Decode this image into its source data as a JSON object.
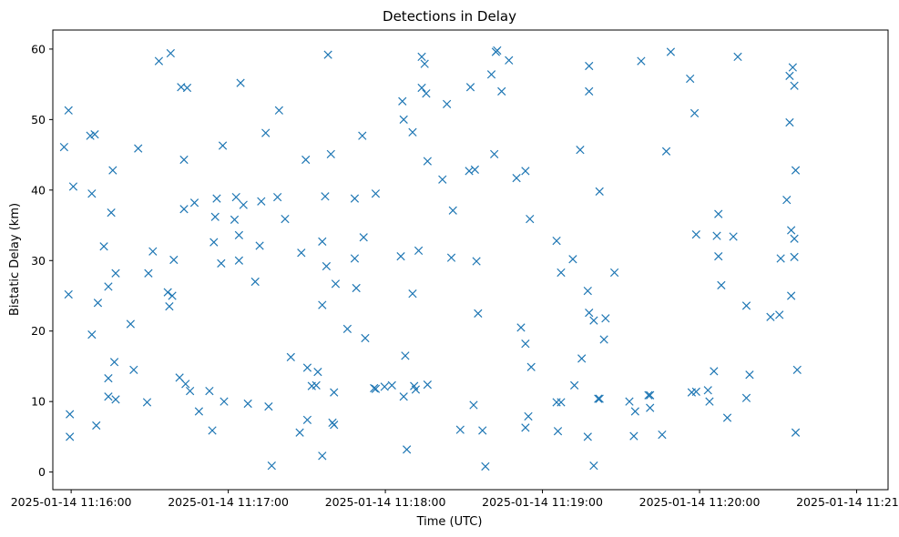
{
  "chart_data": {
    "type": "scatter",
    "title": "Detections in Delay",
    "xlabel": "Time (UTC)",
    "ylabel": "Bistatic Delay (km)",
    "x_axis_kind": "datetime",
    "xlim": [
      "2025-01-14 11:15:53",
      "2025-01-14 11:21:12"
    ],
    "ylim": [
      -2.5,
      62.7
    ],
    "x_ticks": [
      "2025-01-14 11:16:00",
      "2025-01-14 11:17:00",
      "2025-01-14 11:18:00",
      "2025-01-14 11:19:00",
      "2025-01-14 11:20:00",
      "2025-01-14 11:21:00"
    ],
    "x_tick_labels": [
      "2025-01-14 11:16:00",
      "2025-01-14 11:17:00",
      "2025-01-14 11:18:00",
      "2025-01-14 11:19:00",
      "2025-01-14 11:20:00",
      "2025-01-14 11:21:00"
    ],
    "y_ticks": [
      0,
      10,
      20,
      30,
      40,
      50,
      60
    ],
    "y_tick_labels": [
      "0",
      "10",
      "20",
      "30",
      "40",
      "50",
      "60"
    ],
    "grid": false,
    "legend": false,
    "marker": "x",
    "color": "#1f77b4",
    "series": [
      {
        "points": [
          [
            "2025-01-14 11:15:57.3",
            46.1
          ],
          [
            "2025-01-14 11:15:59.0",
            51.3
          ],
          [
            "2025-01-14 11:15:59.0",
            25.2
          ],
          [
            "2025-01-14 11:15:59.5",
            8.2
          ],
          [
            "2025-01-14 11:15:59.5",
            5.0
          ],
          [
            "2025-01-14 11:16:00.8",
            40.5
          ],
          [
            "2025-01-14 11:16:07.3",
            47.7
          ],
          [
            "2025-01-14 11:16:09.0",
            47.9
          ],
          [
            "2025-01-14 11:16:07.9",
            39.5
          ],
          [
            "2025-01-14 11:16:07.9",
            19.5
          ],
          [
            "2025-01-14 11:16:09.6",
            6.6
          ],
          [
            "2025-01-14 11:16:10.2",
            24.0
          ],
          [
            "2025-01-14 11:16:12.5",
            32.0
          ],
          [
            "2025-01-14 11:16:14.2",
            26.3
          ],
          [
            "2025-01-14 11:16:14.2",
            13.3
          ],
          [
            "2025-01-14 11:16:14.2",
            10.7
          ],
          [
            "2025-01-14 11:16:15.3",
            36.8
          ],
          [
            "2025-01-14 11:16:15.9",
            42.8
          ],
          [
            "2025-01-14 11:16:16.5",
            15.6
          ],
          [
            "2025-01-14 11:16:17.0",
            28.2
          ],
          [
            "2025-01-14 11:16:17.0",
            10.3
          ],
          [
            "2025-01-14 11:16:22.7",
            21.0
          ],
          [
            "2025-01-14 11:16:23.9",
            14.5
          ],
          [
            "2025-01-14 11:16:25.6",
            45.9
          ],
          [
            "2025-01-14 11:16:29.0",
            9.9
          ],
          [
            "2025-01-14 11:16:29.5",
            28.2
          ],
          [
            "2025-01-14 11:16:31.2",
            31.3
          ],
          [
            "2025-01-14 11:16:33.5",
            58.3
          ],
          [
            "2025-01-14 11:16:36.9",
            25.5
          ],
          [
            "2025-01-14 11:16:37.5",
            23.5
          ],
          [
            "2025-01-14 11:16:38.0",
            59.4
          ],
          [
            "2025-01-14 11:16:38.6",
            25.0
          ],
          [
            "2025-01-14 11:16:39.2",
            30.1
          ],
          [
            "2025-01-14 11:16:41.4",
            13.4
          ],
          [
            "2025-01-14 11:16:42.0",
            54.6
          ],
          [
            "2025-01-14 11:16:43.1",
            44.3
          ],
          [
            "2025-01-14 11:16:43.1",
            37.3
          ],
          [
            "2025-01-14 11:16:43.7",
            12.5
          ],
          [
            "2025-01-14 11:16:44.3",
            54.5
          ],
          [
            "2025-01-14 11:16:45.4",
            11.5
          ],
          [
            "2025-01-14 11:16:47.1",
            38.2
          ],
          [
            "2025-01-14 11:16:48.8",
            8.6
          ],
          [
            "2025-01-14 11:16:52.8",
            11.5
          ],
          [
            "2025-01-14 11:16:53.9",
            5.9
          ],
          [
            "2025-01-14 11:16:54.5",
            32.6
          ],
          [
            "2025-01-14 11:16:55.0",
            36.2
          ],
          [
            "2025-01-14 11:16:55.6",
            38.8
          ],
          [
            "2025-01-14 11:16:57.3",
            29.6
          ],
          [
            "2025-01-14 11:16:57.9",
            46.3
          ],
          [
            "2025-01-14 11:16:58.4",
            10.0
          ],
          [
            "2025-01-14 11:17:02.4",
            35.8
          ],
          [
            "2025-01-14 11:17:03.0",
            39.0
          ],
          [
            "2025-01-14 11:17:04.1",
            30.0
          ],
          [
            "2025-01-14 11:17:04.1",
            33.6
          ],
          [
            "2025-01-14 11:17:04.7",
            55.2
          ],
          [
            "2025-01-14 11:17:05.8",
            37.9
          ],
          [
            "2025-01-14 11:17:07.5",
            9.7
          ],
          [
            "2025-01-14 11:17:10.3",
            27.0
          ],
          [
            "2025-01-14 11:17:12.6",
            38.4
          ],
          [
            "2025-01-14 11:17:12.0",
            32.1
          ],
          [
            "2025-01-14 11:17:14.3",
            48.1
          ],
          [
            "2025-01-14 11:17:15.4",
            9.3
          ],
          [
            "2025-01-14 11:17:16.6",
            0.9
          ],
          [
            "2025-01-14 11:17:19.4",
            51.3
          ],
          [
            "2025-01-14 11:17:18.8",
            39.0
          ],
          [
            "2025-01-14 11:17:21.7",
            35.9
          ],
          [
            "2025-01-14 11:17:23.9",
            16.3
          ],
          [
            "2025-01-14 11:17:27.3",
            5.6
          ],
          [
            "2025-01-14 11:17:27.9",
            31.1
          ],
          [
            "2025-01-14 11:17:29.6",
            44.3
          ],
          [
            "2025-01-14 11:17:30.2",
            14.8
          ],
          [
            "2025-01-14 11:17:30.2",
            7.4
          ],
          [
            "2025-01-14 11:17:31.9",
            12.2
          ],
          [
            "2025-01-14 11:17:33.6",
            12.3
          ],
          [
            "2025-01-14 11:17:34.2",
            14.2
          ],
          [
            "2025-01-14 11:17:35.9",
            32.7
          ],
          [
            "2025-01-14 11:17:35.9",
            23.7
          ],
          [
            "2025-01-14 11:17:35.9",
            2.3
          ],
          [
            "2025-01-14 11:17:37.0",
            39.1
          ],
          [
            "2025-01-14 11:17:37.5",
            29.2
          ],
          [
            "2025-01-14 11:17:38.1",
            59.2
          ],
          [
            "2025-01-14 11:17:39.2",
            45.1
          ],
          [
            "2025-01-14 11:17:39.8",
            7.0
          ],
          [
            "2025-01-14 11:17:40.4",
            11.3
          ],
          [
            "2025-01-14 11:17:40.4",
            6.7
          ],
          [
            "2025-01-14 11:17:41.0",
            26.7
          ],
          [
            "2025-01-14 11:17:45.5",
            20.3
          ],
          [
            "2025-01-14 11:17:48.3",
            38.8
          ],
          [
            "2025-01-14 11:17:48.3",
            30.3
          ],
          [
            "2025-01-14 11:17:48.9",
            26.1
          ],
          [
            "2025-01-14 11:17:51.2",
            47.7
          ],
          [
            "2025-01-14 11:17:51.7",
            33.3
          ],
          [
            "2025-01-14 11:17:52.3",
            19.0
          ],
          [
            "2025-01-14 11:17:56.3",
            39.5
          ],
          [
            "2025-01-14 11:17:55.7",
            11.9
          ],
          [
            "2025-01-14 11:17:56.3",
            11.8
          ],
          [
            "2025-01-14 11:17:59.7",
            12.1
          ],
          [
            "2025-01-14 11:18:02.5",
            12.3
          ],
          [
            "2025-01-14 11:18:06.5",
            52.6
          ],
          [
            "2025-01-14 11:18:07.0",
            50.0
          ],
          [
            "2025-01-14 11:18:05.9",
            30.6
          ],
          [
            "2025-01-14 11:18:07.0",
            10.7
          ],
          [
            "2025-01-14 11:18:07.6",
            16.5
          ],
          [
            "2025-01-14 11:18:08.2",
            3.2
          ],
          [
            "2025-01-14 11:18:10.4",
            48.2
          ],
          [
            "2025-01-14 11:18:10.4",
            25.3
          ],
          [
            "2025-01-14 11:18:11.0",
            12.2
          ],
          [
            "2025-01-14 11:18:11.6",
            11.7
          ],
          [
            "2025-01-14 11:18:12.7",
            31.4
          ],
          [
            "2025-01-14 11:18:13.9",
            58.9
          ],
          [
            "2025-01-14 11:18:13.9",
            54.5
          ],
          [
            "2025-01-14 11:18:15.0",
            57.9
          ],
          [
            "2025-01-14 11:18:15.6",
            53.7
          ],
          [
            "2025-01-14 11:18:16.1",
            44.1
          ],
          [
            "2025-01-14 11:18:16.1",
            12.4
          ],
          [
            "2025-01-14 11:18:23.5",
            52.2
          ],
          [
            "2025-01-14 11:18:21.8",
            41.5
          ],
          [
            "2025-01-14 11:18:25.8",
            37.1
          ],
          [
            "2025-01-14 11:18:25.2",
            30.4
          ],
          [
            "2025-01-14 11:18:28.6",
            6.0
          ],
          [
            "2025-01-14 11:18:32.5",
            54.6
          ],
          [
            "2025-01-14 11:18:32.0",
            42.7
          ],
          [
            "2025-01-14 11:18:34.2",
            42.9
          ],
          [
            "2025-01-14 11:18:34.8",
            29.9
          ],
          [
            "2025-01-14 11:18:35.4",
            22.5
          ],
          [
            "2025-01-14 11:18:33.7",
            9.5
          ],
          [
            "2025-01-14 11:18:37.1",
            5.9
          ],
          [
            "2025-01-14 11:18:38.2",
            0.8
          ],
          [
            "2025-01-14 11:18:40.5",
            56.4
          ],
          [
            "2025-01-14 11:18:42.2",
            59.6
          ],
          [
            "2025-01-14 11:18:42.7",
            59.8
          ],
          [
            "2025-01-14 11:18:41.6",
            45.1
          ],
          [
            "2025-01-14 11:18:44.4",
            54.0
          ],
          [
            "2025-01-14 11:18:47.2",
            58.4
          ],
          [
            "2025-01-14 11:18:50.1",
            41.7
          ],
          [
            "2025-01-14 11:18:51.8",
            20.5
          ],
          [
            "2025-01-14 11:18:53.5",
            42.7
          ],
          [
            "2025-01-14 11:18:53.5",
            18.2
          ],
          [
            "2025-01-14 11:18:53.5",
            6.3
          ],
          [
            "2025-01-14 11:18:54.6",
            7.9
          ],
          [
            "2025-01-14 11:18:55.2",
            35.9
          ],
          [
            "2025-01-14 11:18:55.7",
            14.9
          ],
          [
            "2025-01-14 11:19:05.4",
            32.8
          ],
          [
            "2025-01-14 11:19:07.1",
            28.3
          ],
          [
            "2025-01-14 11:19:05.4",
            9.9
          ],
          [
            "2025-01-14 11:19:07.1",
            9.9
          ],
          [
            "2025-01-14 11:19:05.9",
            5.8
          ],
          [
            "2025-01-14 11:19:11.6",
            30.2
          ],
          [
            "2025-01-14 11:19:12.2",
            12.3
          ],
          [
            "2025-01-14 11:19:14.4",
            45.7
          ],
          [
            "2025-01-14 11:19:15.0",
            16.1
          ],
          [
            "2025-01-14 11:19:17.8",
            57.6
          ],
          [
            "2025-01-14 11:19:17.8",
            54.0
          ],
          [
            "2025-01-14 11:19:17.3",
            25.7
          ],
          [
            "2025-01-14 11:19:17.8",
            22.6
          ],
          [
            "2025-01-14 11:19:17.3",
            5.0
          ],
          [
            "2025-01-14 11:19:19.6",
            21.5
          ],
          [
            "2025-01-14 11:19:19.6",
            0.9
          ],
          [
            "2025-01-14 11:19:21.3",
            10.4
          ],
          [
            "2025-01-14 11:19:21.8",
            10.4
          ],
          [
            "2025-01-14 11:19:21.8",
            39.8
          ],
          [
            "2025-01-14 11:19:23.5",
            18.8
          ],
          [
            "2025-01-14 11:19:24.1",
            21.8
          ],
          [
            "2025-01-14 11:19:27.5",
            28.3
          ],
          [
            "2025-01-14 11:19:33.2",
            10.0
          ],
          [
            "2025-01-14 11:19:34.9",
            5.1
          ],
          [
            "2025-01-14 11:19:35.4",
            8.6
          ],
          [
            "2025-01-14 11:19:37.7",
            58.3
          ],
          [
            "2025-01-14 11:19:40.5",
            10.9
          ],
          [
            "2025-01-14 11:19:41.1",
            10.9
          ],
          [
            "2025-01-14 11:19:41.1",
            9.1
          ],
          [
            "2025-01-14 11:19:45.7",
            5.3
          ],
          [
            "2025-01-14 11:19:47.3",
            45.5
          ],
          [
            "2025-01-14 11:19:49.0",
            59.6
          ],
          [
            "2025-01-14 11:19:57.0",
            11.3
          ],
          [
            "2025-01-14 11:19:58.7",
            11.4
          ],
          [
            "2025-01-14 11:19:56.4",
            55.8
          ],
          [
            "2025-01-14 11:19:58.1",
            50.9
          ],
          [
            "2025-01-14 11:19:58.7",
            33.7
          ],
          [
            "2025-01-14 11:20:03.2",
            11.6
          ],
          [
            "2025-01-14 11:20:03.8",
            10.0
          ],
          [
            "2025-01-14 11:20:05.5",
            14.3
          ],
          [
            "2025-01-14 11:20:07.2",
            36.6
          ],
          [
            "2025-01-14 11:20:06.6",
            33.5
          ],
          [
            "2025-01-14 11:20:07.2",
            30.6
          ],
          [
            "2025-01-14 11:20:08.3",
            26.5
          ],
          [
            "2025-01-14 11:20:10.6",
            7.7
          ],
          [
            "2025-01-14 11:20:12.9",
            33.4
          ],
          [
            "2025-01-14 11:20:14.6",
            58.9
          ],
          [
            "2025-01-14 11:20:17.9",
            23.6
          ],
          [
            "2025-01-14 11:20:17.9",
            10.5
          ],
          [
            "2025-01-14 11:20:19.1",
            13.8
          ],
          [
            "2025-01-14 11:20:27.1",
            22.0
          ],
          [
            "2025-01-14 11:20:30.5",
            22.3
          ],
          [
            "2025-01-14 11:20:31.0",
            30.3
          ],
          [
            "2025-01-14 11:20:33.3",
            38.6
          ],
          [
            "2025-01-14 11:20:34.4",
            56.2
          ],
          [
            "2025-01-14 11:20:34.4",
            49.6
          ],
          [
            "2025-01-14 11:20:35.0",
            34.3
          ],
          [
            "2025-01-14 11:20:35.0",
            25.0
          ],
          [
            "2025-01-14 11:20:35.6",
            57.4
          ],
          [
            "2025-01-14 11:20:36.2",
            54.8
          ],
          [
            "2025-01-14 11:20:36.2",
            33.1
          ],
          [
            "2025-01-14 11:20:36.2",
            30.5
          ],
          [
            "2025-01-14 11:20:36.7",
            42.8
          ],
          [
            "2025-01-14 11:20:37.3",
            14.5
          ],
          [
            "2025-01-14 11:20:36.7",
            5.6
          ]
        ]
      }
    ]
  }
}
